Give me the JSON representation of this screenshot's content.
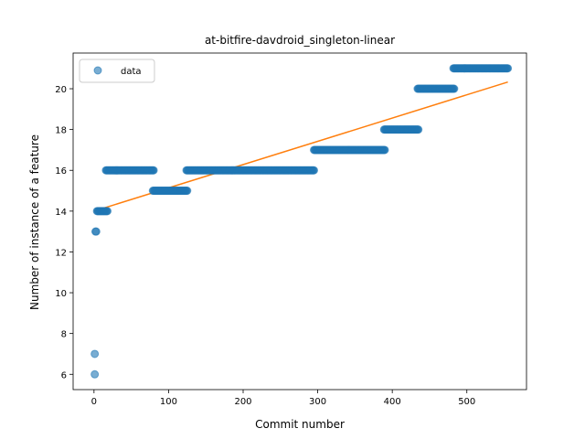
{
  "chart_data": {
    "type": "scatter",
    "title": "at-bitfire-davdroid_singleton-linear",
    "xlabel": "Commit number",
    "ylabel": "Number of instance of a feature",
    "xlim": [
      -28,
      580
    ],
    "ylim": [
      5.25,
      21.75
    ],
    "xticks": [
      0,
      100,
      200,
      300,
      400,
      500
    ],
    "yticks": [
      6,
      8,
      10,
      12,
      14,
      16,
      18,
      20
    ],
    "legend": {
      "placement": "top-left",
      "entries": [
        {
          "label": "data"
        }
      ]
    },
    "grid": false,
    "colors": {
      "data": "#1f77b4",
      "fit": "#ff7f0e"
    },
    "series": [
      {
        "name": "data",
        "kind": "points",
        "points": [
          [
            1,
            6
          ],
          [
            1,
            7
          ],
          [
            2,
            13
          ],
          [
            3,
            13
          ]
        ],
        "runs": [
          {
            "from": 4,
            "to": 18,
            "y": 14
          },
          {
            "from": 16,
            "to": 80,
            "y": 16
          },
          {
            "from": 79,
            "to": 125,
            "y": 15
          },
          {
            "from": 124,
            "to": 295,
            "y": 16
          },
          {
            "from": 295,
            "to": 390,
            "y": 17
          },
          {
            "from": 389,
            "to": 435,
            "y": 18
          },
          {
            "from": 434,
            "to": 483,
            "y": 20
          },
          {
            "from": 482,
            "to": 555,
            "y": 21
          }
        ]
      },
      {
        "name": "fit",
        "kind": "line",
        "x": [
          0,
          555
        ],
        "y": [
          14.0,
          20.33
        ]
      }
    ]
  }
}
